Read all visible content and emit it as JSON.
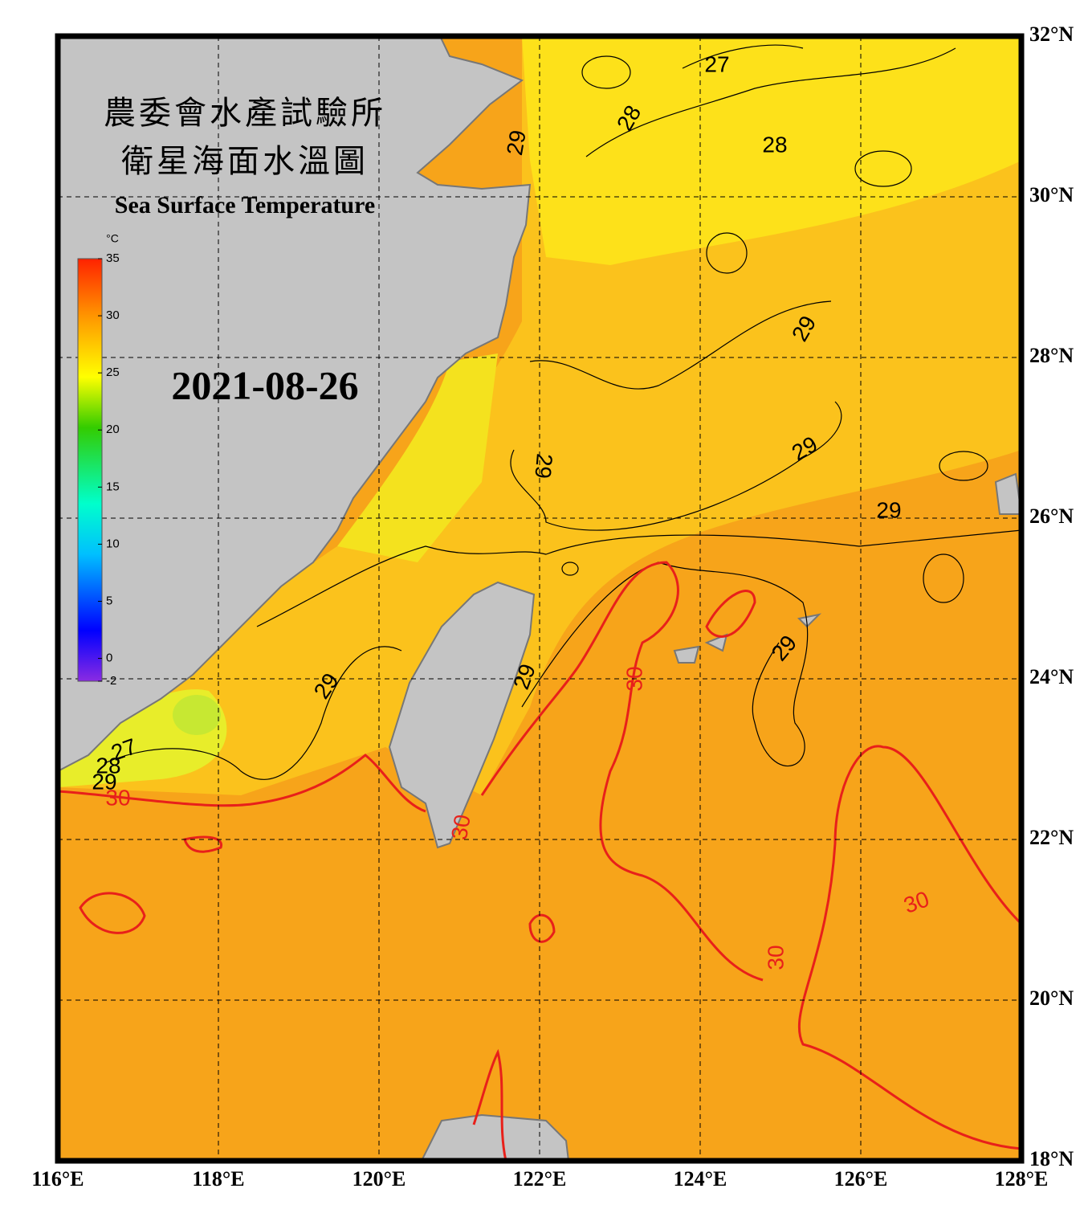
{
  "map": {
    "title_zh_1": "農委會水產試驗所",
    "title_zh_2": "衛星海面水溫圖",
    "title_en": "Sea Surface Temperature",
    "date": "2021-08-26",
    "colorbar": {
      "unit": "°C",
      "clim": [
        -2,
        35
      ],
      "ticks": [
        35,
        30,
        25,
        20,
        15,
        10,
        5,
        0,
        -2
      ]
    },
    "xlim": [
      116,
      128
    ],
    "ylim": [
      18,
      32
    ],
    "xticks": [
      {
        "value": 116,
        "label": "116°E"
      },
      {
        "value": 118,
        "label": "118°E"
      },
      {
        "value": 120,
        "label": "120°E"
      },
      {
        "value": 122,
        "label": "122°E"
      },
      {
        "value": 124,
        "label": "124°E"
      },
      {
        "value": 126,
        "label": "126°E"
      },
      {
        "value": 128,
        "label": "128°E"
      }
    ],
    "yticks": [
      {
        "value": 18,
        "label": "18°N"
      },
      {
        "value": 20,
        "label": "20°N"
      },
      {
        "value": 22,
        "label": "22°N"
      },
      {
        "value": 24,
        "label": "24°N"
      },
      {
        "value": 26,
        "label": "26°N"
      },
      {
        "value": 28,
        "label": "28°N"
      },
      {
        "value": 30,
        "label": "30°N"
      },
      {
        "value": 32,
        "label": "32°N"
      }
    ],
    "grid": true,
    "contour_labels": [
      27,
      28,
      28,
      29,
      29,
      29,
      29,
      29,
      29,
      29,
      29,
      27,
      28,
      29,
      30,
      30,
      30,
      30,
      30
    ]
  }
}
